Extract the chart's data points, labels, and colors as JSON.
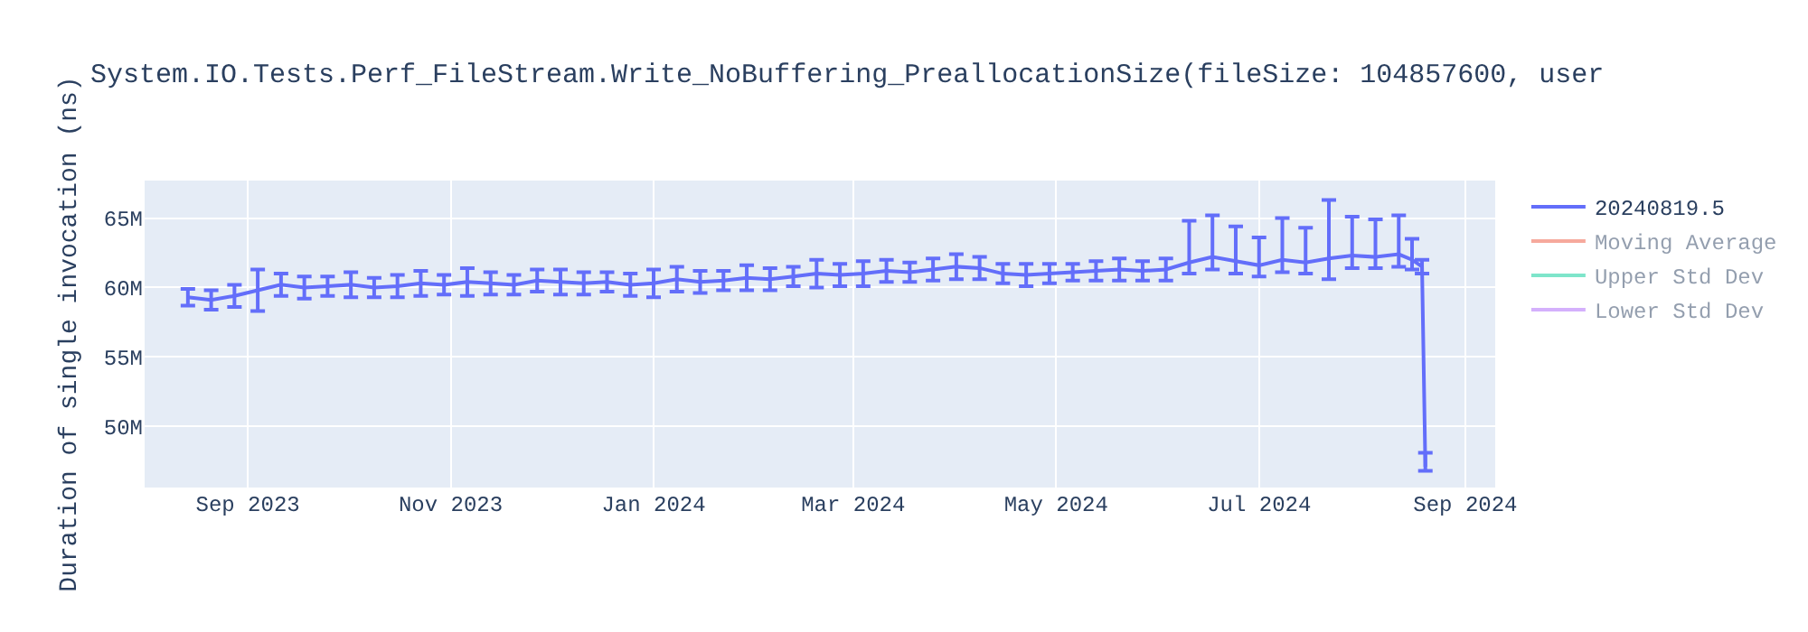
{
  "chart_data": {
    "type": "line",
    "title": "System.IO.Tests.Perf_FileStream.Write_NoBuffering_PreallocationSize(fileSize: 104857600, user",
    "ylabel": "Duration of single invocation (ns)",
    "x": [
      "2023-08-14",
      "2023-08-21",
      "2023-08-28",
      "2023-09-04",
      "2023-09-11",
      "2023-09-18",
      "2023-09-25",
      "2023-10-02",
      "2023-10-09",
      "2023-10-16",
      "2023-10-23",
      "2023-10-30",
      "2023-11-06",
      "2023-11-13",
      "2023-11-20",
      "2023-11-27",
      "2023-12-04",
      "2023-12-11",
      "2023-12-18",
      "2023-12-25",
      "2024-01-01",
      "2024-01-08",
      "2024-01-15",
      "2024-01-22",
      "2024-01-29",
      "2024-02-05",
      "2024-02-12",
      "2024-02-19",
      "2024-02-26",
      "2024-03-04",
      "2024-03-11",
      "2024-03-18",
      "2024-03-25",
      "2024-04-01",
      "2024-04-08",
      "2024-04-15",
      "2024-04-22",
      "2024-04-29",
      "2024-05-06",
      "2024-05-13",
      "2024-05-20",
      "2024-05-27",
      "2024-06-03",
      "2024-06-10",
      "2024-06-17",
      "2024-06-24",
      "2024-07-01",
      "2024-07-08",
      "2024-07-15",
      "2024-07-22",
      "2024-07-29",
      "2024-08-05",
      "2024-08-12",
      "2024-08-16",
      "2024-08-19",
      "2024-08-20"
    ],
    "series": [
      {
        "name": "20240819.5",
        "color": "#636efa",
        "values": [
          59300000,
          59100000,
          59400000,
          59800000,
          60200000,
          60000000,
          60100000,
          60200000,
          60000000,
          60100000,
          60300000,
          60200000,
          60400000,
          60300000,
          60200000,
          60500000,
          60400000,
          60300000,
          60400000,
          60200000,
          60300000,
          60600000,
          60400000,
          60500000,
          60700000,
          60600000,
          60800000,
          61000000,
          60900000,
          61000000,
          61200000,
          61100000,
          61300000,
          61500000,
          61400000,
          61000000,
          60900000,
          61000000,
          61100000,
          61200000,
          61300000,
          61200000,
          61300000,
          61800000,
          62200000,
          61900000,
          61600000,
          62000000,
          61800000,
          62100000,
          62300000,
          62200000,
          62400000,
          62000000,
          61500000,
          47100000
        ],
        "errors": [
          600000,
          700000,
          800000,
          1500000,
          800000,
          800000,
          700000,
          900000,
          700000,
          800000,
          900000,
          700000,
          1000000,
          800000,
          700000,
          800000,
          900000,
          800000,
          700000,
          800000,
          1000000,
          900000,
          800000,
          700000,
          900000,
          800000,
          700000,
          1000000,
          800000,
          900000,
          800000,
          700000,
          800000,
          900000,
          800000,
          700000,
          800000,
          700000,
          600000,
          700000,
          800000,
          700000,
          800000,
          [
            61000000,
            64800000
          ],
          [
            61300000,
            65200000
          ],
          [
            61000000,
            64400000
          ],
          [
            60800000,
            63600000
          ],
          [
            61100000,
            65000000
          ],
          [
            61000000,
            64300000
          ],
          [
            60600000,
            66300000
          ],
          [
            61400000,
            65100000
          ],
          [
            61400000,
            64900000
          ],
          [
            61500000,
            65200000
          ],
          [
            61300000,
            63500000
          ],
          500000,
          [
            46800000,
            48100000
          ]
        ]
      },
      {
        "name": "Moving Average",
        "color": "#ef553b",
        "values": [
          null,
          null,
          null,
          null,
          null,
          null,
          null,
          null,
          null,
          null,
          null,
          null,
          null,
          null,
          null,
          null,
          null,
          null,
          null,
          null,
          null,
          null,
          null,
          null,
          null,
          null,
          null,
          null,
          null,
          null,
          null,
          null,
          null,
          null,
          null,
          null,
          null,
          null,
          null,
          null,
          null,
          null,
          null,
          null,
          null,
          null,
          null,
          null,
          null,
          null,
          null,
          null,
          null,
          null,
          null,
          null
        ]
      },
      {
        "name": "Upper Std Dev",
        "color": "#00cc96",
        "values": [
          null,
          null,
          null,
          null,
          null,
          null,
          null,
          null,
          null,
          null,
          null,
          null,
          null,
          null,
          null,
          null,
          null,
          null,
          null,
          null,
          null,
          null,
          null,
          null,
          null,
          null,
          null,
          null,
          null,
          null,
          null,
          null,
          null,
          null,
          null,
          null,
          null,
          null,
          null,
          null,
          null,
          null,
          null,
          null,
          null,
          null,
          null,
          null,
          null,
          null,
          null,
          null,
          null,
          null,
          null,
          null
        ]
      },
      {
        "name": "Lower Std Dev",
        "color": "#ab63fa",
        "values": [
          null,
          null,
          null,
          null,
          null,
          null,
          null,
          null,
          null,
          null,
          null,
          null,
          null,
          null,
          null,
          null,
          null,
          null,
          null,
          null,
          null,
          null,
          null,
          null,
          null,
          null,
          null,
          null,
          null,
          null,
          null,
          null,
          null,
          null,
          null,
          null,
          null,
          null,
          null,
          null,
          null,
          null,
          null,
          null,
          null,
          null,
          null,
          null,
          null,
          null,
          null,
          null,
          null,
          null,
          null,
          null
        ]
      }
    ],
    "xlim": [
      "2023-08-01",
      "2024-09-10"
    ],
    "xticks": [
      {
        "value": "2023-09-01",
        "label": "Sep 2023"
      },
      {
        "value": "2023-11-01",
        "label": "Nov 2023"
      },
      {
        "value": "2024-01-01",
        "label": "Jan 2024"
      },
      {
        "value": "2024-03-01",
        "label": "Mar 2024"
      },
      {
        "value": "2024-05-01",
        "label": "May 2024"
      },
      {
        "value": "2024-07-01",
        "label": "Jul 2024"
      },
      {
        "value": "2024-09-01",
        "label": "Sep 2024"
      }
    ],
    "ylim": [
      45600000,
      67700000
    ],
    "yticks": [
      {
        "value": 50000000,
        "label": "50M"
      },
      {
        "value": 55000000,
        "label": "55M"
      },
      {
        "value": 60000000,
        "label": "60M"
      },
      {
        "value": 65000000,
        "label": "65M"
      }
    ],
    "grid": true,
    "legend": "top right",
    "line_style": "solid"
  }
}
